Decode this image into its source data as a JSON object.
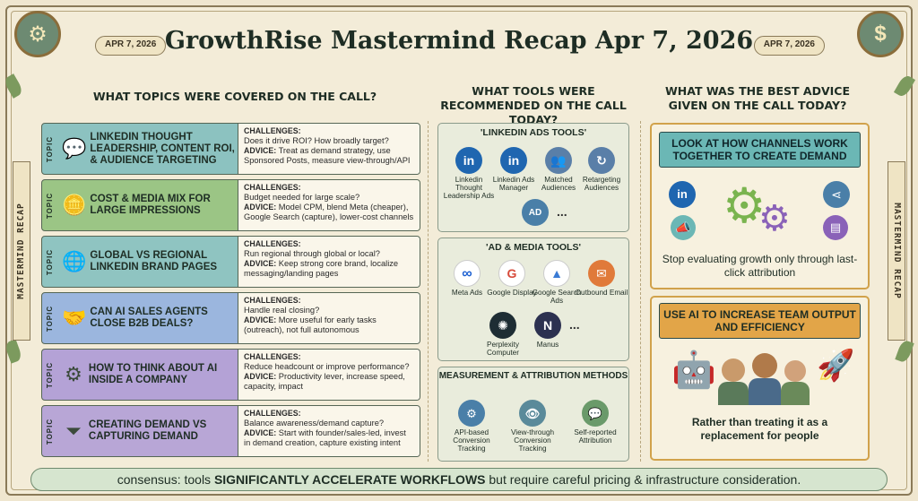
{
  "title": "GrowthRise Mastermind Recap Apr 7, 2026",
  "date_badge": "APR 7, 2026",
  "side_label": "MASTERMIND RECAP",
  "columns": {
    "topics": "WHAT TOPICS WERE COVERED ON THE CALL?",
    "tools": "WHAT TOOLS WERE RECOMMENDED ON THE CALL TODAY?",
    "advice": "WHAT WAS THE BEST ADVICE GIVEN ON THE CALL TODAY?"
  },
  "topic_tag": "TOPIC",
  "challenges_label": "CHALLENGES:",
  "advice_label": "ADVICE:",
  "topics": [
    {
      "title": "LINKEDIN THOUGHT LEADERSHIP, CONTENT ROI, & AUDIENCE TARGETING",
      "challenge": "Does it drive ROI? How broadly target?",
      "advice": "Treat as demand strategy, use Sponsored Posts, measure view-through/API",
      "icon": "chat-person-icon"
    },
    {
      "title": "COST & MEDIA MIX FOR LARGE IMPRESSIONS",
      "challenge": "Budget needed for large scale?",
      "advice": "Model CPM, blend Meta (cheaper), Google Search (capture), lower-cost channels",
      "icon": "coins-icon"
    },
    {
      "title": "GLOBAL VS REGIONAL LINKEDIN BRAND PAGES",
      "challenge": "Run regional through global or local?",
      "advice": "Keep strong core brand, localize messaging/landing pages",
      "icon": "globe-icon"
    },
    {
      "title": "CAN AI SALES AGENTS CLOSE B2B DEALS?",
      "challenge": "Handle real closing?",
      "advice": "More useful for early tasks (outreach), not full autonomous",
      "icon": "handshake-icon"
    },
    {
      "title": "HOW TO THINK ABOUT AI INSIDE A COMPANY",
      "challenge": "Reduce headcount or improve performance?",
      "advice": "Productivity lever, increase speed, capacity, impact",
      "icon": "gear-growth-icon"
    },
    {
      "title": "CREATING DEMAND VS CAPTURING DEMAND",
      "challenge": "Balance awareness/demand capture?",
      "advice": "Start with founder/sales-led, invest in demand creation, capture existing intent",
      "icon": "funnel-icon"
    }
  ],
  "linkedin_tools": {
    "title": "'LINKEDIN ADS TOOLS'",
    "items": [
      "Linkedin Thought Leadership Ads",
      "Linkedin Ads Manager",
      "Matched Audiences",
      "Retargeting Audiences"
    ],
    "more": "..."
  },
  "media_tools": {
    "title": "'AD & MEDIA TOOLS'",
    "items": [
      "Meta Ads",
      "Google Display",
      "Google Search Ads",
      "Outbound Email",
      "Perplexity Computer",
      "Manus"
    ],
    "more": "..."
  },
  "measurement": {
    "title": "MEASUREMENT & ATTRIBUTION METHODS",
    "items": [
      "API-based Conversion Tracking",
      "View-through Conversion Tracking",
      "Self-reported Attribution"
    ]
  },
  "advice": [
    {
      "headline": "LOOK AT HOW CHANNELS WORK TOGETHER TO CREATE DEMAND",
      "text": "Stop evaluating growth only through last-click attribution"
    },
    {
      "headline": "USE AI TO INCREASE TEAM OUTPUT AND EFFICIENCY",
      "text": "Rather than treating it as a replacement for people"
    }
  ],
  "footer": {
    "pre": "consensus: tools ",
    "bold": "SIGNIFICANTLY ACCELERATE WORKFLOWS",
    "post": " but require careful pricing & infrastructure consideration."
  },
  "colors": {
    "linkedin": "#1f66b0",
    "meta": "#1b5fd1",
    "google": "#ffffff",
    "outbound": "#e07a3a",
    "ribbon1": "#6bb7b5",
    "ribbon2": "#e2a548"
  }
}
